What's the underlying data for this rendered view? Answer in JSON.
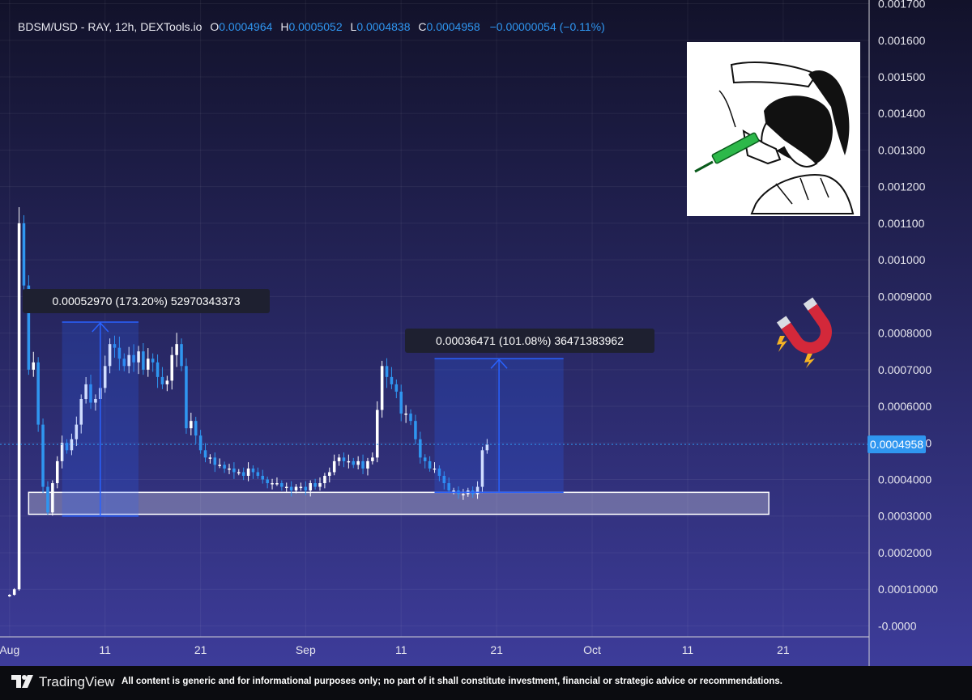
{
  "header": {
    "symbol": "BDSM/USD - RAY, 12h, DEXTools.io",
    "o_label": "O",
    "o_value": "0.0004964",
    "h_label": "H",
    "h_value": "0.0005052",
    "l_label": "L",
    "l_value": "0.0004838",
    "c_label": "C",
    "c_value": "0.0004958",
    "change": "−0.00000054 (−0.11%)"
  },
  "price_tag": "0.0004958",
  "measure_1": "0.00052970 (173.20%) 52970343373",
  "measure_2": "0.00036471 (101.08%) 36471383962",
  "footer": {
    "brand": "TradingView",
    "disclaimer": "All content is generic and for informational purposes only; no part of it shall constitute investment, financial or strategic advice or recommendations."
  },
  "icons": [
    "tradingview-logo-icon",
    "magnet-icon",
    "syringe-meme-illustration"
  ],
  "colors": {
    "bg_top": "#12122a",
    "bg_bottom": "#3d3c9a",
    "up": "#ffffff",
    "down": "#2f96f0",
    "accent": "#2962ff",
    "header_value": "#2f96f0",
    "tag": "#2f96f0"
  },
  "chart_data": {
    "type": "candlestick",
    "title": "BDSM/USD - RAY, 12h, DEXTools.io",
    "y_ticks": [
      "0.001700",
      "0.001600",
      "0.001500",
      "0.001400",
      "0.001300",
      "0.001200",
      "0.001100",
      "0.001000",
      "0.0009000",
      "0.0008000",
      "0.0007000",
      "0.0006000",
      "0.0005000",
      "0.0004000",
      "0.0003000",
      "0.0002000",
      "0.00010000",
      "-0.0000"
    ],
    "y_range": [
      -3e-05,
      0.00171
    ],
    "x_ticks": [
      {
        "label": "Aug",
        "day": 0
      },
      {
        "label": "11",
        "day": 10
      },
      {
        "label": "21",
        "day": 20
      },
      {
        "label": "Sep",
        "day": 31
      },
      {
        "label": "11",
        "day": 41
      },
      {
        "label": "21",
        "day": 51
      },
      {
        "label": "Oct",
        "day": 61
      },
      {
        "label": "11",
        "day": 71
      },
      {
        "label": "21",
        "day": 81
      }
    ],
    "x_range": [
      "2024-07-31T00:00",
      "2024-10-30T00:00"
    ],
    "interval_hours": 12,
    "first_candle": "2024-08-01T00:00",
    "closes": [
      8.5e-05,
      0.0001,
      0.0011,
      0.00093,
      0.0007,
      0.00072,
      0.00055,
      0.00038,
      0.00031,
      0.00039,
      0.00045,
      0.0005,
      0.00048,
      0.00051,
      0.00055,
      0.00062,
      0.00066,
      0.00061,
      0.00062,
      0.00065,
      0.00071,
      0.00077,
      0.00076,
      0.00073,
      0.00071,
      0.00074,
      0.00072,
      0.00075,
      0.0007,
      0.00073,
      0.00072,
      0.00068,
      0.00066,
      0.00067,
      0.00074,
      0.00077,
      0.00071,
      0.00054,
      0.00056,
      0.00052,
      0.00048,
      0.00046,
      0.00046,
      0.00044,
      0.00044,
      0.00043,
      0.00043,
      0.00042,
      0.00042,
      0.00041,
      0.00043,
      0.00042,
      0.00041,
      0.0004,
      0.00039,
      0.00039,
      0.00039,
      0.00038,
      0.00038,
      0.00037,
      0.00038,
      0.00038,
      0.00037,
      0.00039,
      0.00038,
      0.00039,
      0.00041,
      0.00042,
      0.00045,
      0.00046,
      0.00045,
      0.00045,
      0.00044,
      0.00045,
      0.00043,
      0.00045,
      0.00046,
      0.00059,
      0.00071,
      0.00068,
      0.00066,
      0.00064,
      0.00058,
      0.00058,
      0.00056,
      0.00051,
      0.00046,
      0.00045,
      0.00043,
      0.00043,
      0.00041,
      0.00039,
      0.00037,
      0.00037,
      0.00036,
      0.00036,
      0.00037,
      0.00036,
      0.00038,
      0.00048,
      0.0004958
    ],
    "measures": [
      {
        "from_day": 6.5,
        "to_day": 14.5,
        "low": 0.0003,
        "high": 0.00083,
        "label": "0.00052970 (173.20%) 52970343373"
      },
      {
        "from_day": 45.5,
        "to_day": 59,
        "low": 0.000365,
        "high": 0.00073,
        "label": "0.00036471 (101.08%) 36471383962"
      }
    ],
    "support_zone": {
      "from_day": 3,
      "to_day": 80.5,
      "low": 0.000305,
      "high": 0.000365
    },
    "last_price": 0.0004958
  }
}
